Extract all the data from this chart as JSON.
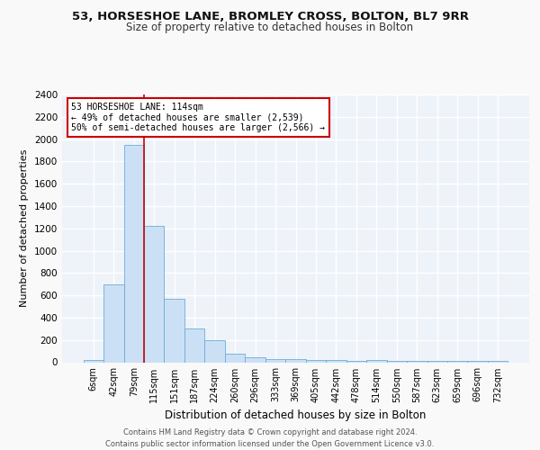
{
  "title1": "53, HORSESHOE LANE, BROMLEY CROSS, BOLTON, BL7 9RR",
  "title2": "Size of property relative to detached houses in Bolton",
  "xlabel": "Distribution of detached houses by size in Bolton",
  "ylabel": "Number of detached properties",
  "categories": [
    "6sqm",
    "42sqm",
    "79sqm",
    "115sqm",
    "151sqm",
    "187sqm",
    "224sqm",
    "260sqm",
    "296sqm",
    "333sqm",
    "369sqm",
    "405sqm",
    "442sqm",
    "478sqm",
    "514sqm",
    "550sqm",
    "587sqm",
    "623sqm",
    "659sqm",
    "696sqm",
    "732sqm"
  ],
  "values": [
    20,
    700,
    1950,
    1220,
    570,
    305,
    200,
    80,
    45,
    30,
    30,
    20,
    20,
    15,
    20,
    15,
    15,
    10,
    15,
    10,
    15
  ],
  "bar_color": "#cce0f5",
  "bar_edge_color": "#6aaed6",
  "red_line_x": 2.5,
  "annotation_text": "53 HORSESHOE LANE: 114sqm\n← 49% of detached houses are smaller (2,539)\n50% of semi-detached houses are larger (2,566) →",
  "annotation_box_color": "#ffffff",
  "annotation_box_edge": "#cc0000",
  "red_line_color": "#cc0000",
  "background_color": "#eef2f9",
  "grid_color": "#ffffff",
  "footer_text": "Contains HM Land Registry data © Crown copyright and database right 2024.\nContains public sector information licensed under the Open Government Licence v3.0.",
  "ylim": [
    0,
    2400
  ],
  "yticks": [
    0,
    200,
    400,
    600,
    800,
    1000,
    1200,
    1400,
    1600,
    1800,
    2000,
    2200,
    2400
  ],
  "fig_bg": "#f9f9f9"
}
